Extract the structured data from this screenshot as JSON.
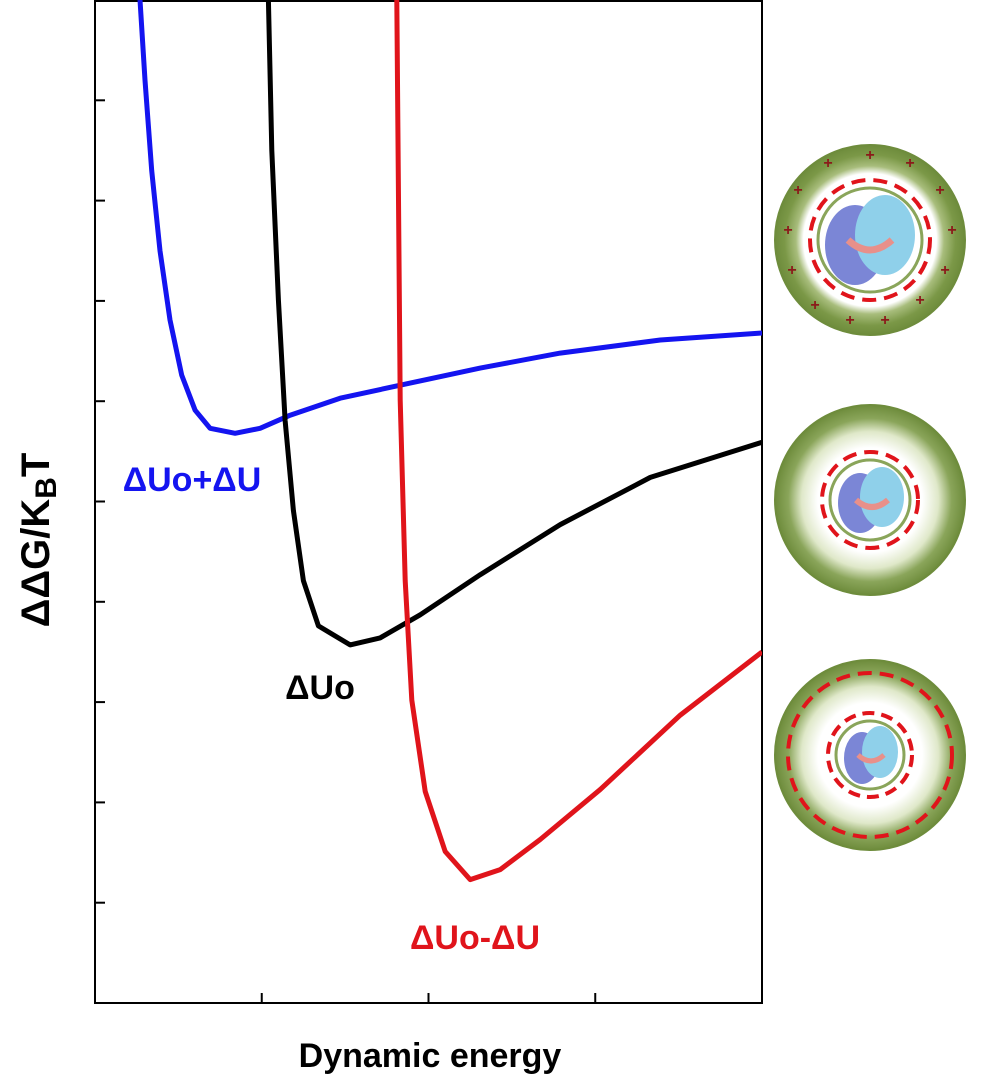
{
  "chart_data": {
    "type": "line",
    "x_label": "Dynamic energy",
    "y_label": [
      "ΔΔG/K",
      "B",
      "T"
    ],
    "xlim": [
      0,
      4
    ],
    "xticks": [
      1,
      2,
      3
    ],
    "ylim": [
      0,
      10
    ],
    "yticks": [
      1,
      2,
      3,
      4,
      5,
      6,
      7,
      8,
      9
    ],
    "series": [
      {
        "name": "ΔUo+ΔU",
        "color": "#1414f0",
        "x": [
          0.27,
          0.3,
          0.34,
          0.39,
          0.45,
          0.52,
          0.6,
          0.69,
          0.84,
          0.99,
          1.17,
          1.47,
          1.83,
          2.31,
          2.79,
          3.39,
          4.0
        ],
        "values": [
          10.0,
          9.2,
          8.3,
          7.5,
          6.81,
          6.26,
          5.91,
          5.73,
          5.68,
          5.73,
          5.86,
          6.03,
          6.16,
          6.33,
          6.48,
          6.61,
          6.68
        ]
      },
      {
        "name": "ΔUo",
        "color": "#000000",
        "x": [
          1.04,
          1.06,
          1.1,
          1.14,
          1.19,
          1.25,
          1.34,
          1.53,
          1.71,
          1.95,
          2.31,
          2.79,
          3.33,
          4.0
        ],
        "values": [
          10.0,
          8.5,
          7.01,
          5.81,
          4.91,
          4.21,
          3.76,
          3.57,
          3.64,
          3.87,
          4.27,
          4.77,
          5.24,
          5.59
        ]
      },
      {
        "name": "ΔUo-ΔU",
        "color": "#e0141b",
        "x": [
          1.81,
          1.82,
          1.83,
          1.86,
          1.9,
          1.98,
          2.1,
          2.25,
          2.43,
          2.67,
          3.03,
          3.51,
          4.0
        ],
        "values": [
          10.0,
          8.01,
          6.01,
          4.21,
          3.02,
          2.11,
          1.51,
          1.23,
          1.33,
          1.63,
          2.13,
          2.87,
          3.5
        ]
      }
    ]
  }
}
